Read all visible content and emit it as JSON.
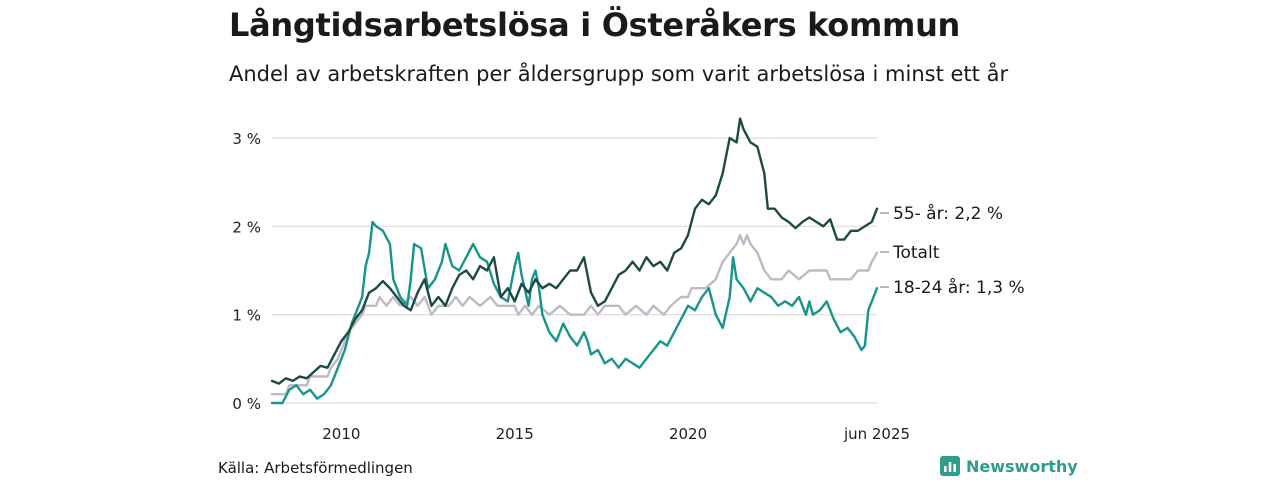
{
  "header": {
    "title": "Långtidsarbetslösa i Österåkers kommun",
    "subtitle": "Andel av arbetskraften per åldersgrupp som varit arbetslösa i minst ett år"
  },
  "footer": {
    "source": "Källa: Arbetsförmedlingen",
    "brand": "Newsworthy"
  },
  "chart_data": {
    "type": "line",
    "title": "Långtidsarbetslösa i Österåkers kommun",
    "subtitle": "Andel av arbetskraften per åldersgrupp som varit arbetslösa i minst ett år",
    "xlabel": "",
    "ylabel": "",
    "x_ticks": [
      "2010",
      "2015",
      "2020",
      "jun 2025"
    ],
    "y_ticks": [
      "0 %",
      "1 %",
      "2 %",
      "3 %"
    ],
    "ylim": [
      0,
      3.3
    ],
    "xlim": [
      2008.0,
      2025.45
    ],
    "grid": "horizontal",
    "legend": "direct labels at line ends",
    "colors": {
      "age55": "#1f4a44",
      "total": "#bdbac7",
      "age18_24": "#17958a"
    },
    "series": [
      {
        "name": "55- år",
        "end_label": "55- år: 2,2 %",
        "color": "#1f4a44",
        "points": [
          [
            2008.0,
            0.25
          ],
          [
            2008.2,
            0.22
          ],
          [
            2008.4,
            0.28
          ],
          [
            2008.6,
            0.25
          ],
          [
            2008.8,
            0.3
          ],
          [
            2009.0,
            0.28
          ],
          [
            2009.2,
            0.35
          ],
          [
            2009.4,
            0.42
          ],
          [
            2009.6,
            0.4
          ],
          [
            2009.8,
            0.55
          ],
          [
            2010.0,
            0.7
          ],
          [
            2010.2,
            0.8
          ],
          [
            2010.4,
            0.95
          ],
          [
            2010.6,
            1.05
          ],
          [
            2010.8,
            1.25
          ],
          [
            2011.0,
            1.3
          ],
          [
            2011.2,
            1.38
          ],
          [
            2011.4,
            1.3
          ],
          [
            2011.6,
            1.2
          ],
          [
            2011.8,
            1.1
          ],
          [
            2012.0,
            1.05
          ],
          [
            2012.2,
            1.25
          ],
          [
            2012.4,
            1.4
          ],
          [
            2012.6,
            1.1
          ],
          [
            2012.8,
            1.2
          ],
          [
            2013.0,
            1.1
          ],
          [
            2013.2,
            1.3
          ],
          [
            2013.4,
            1.45
          ],
          [
            2013.6,
            1.5
          ],
          [
            2013.8,
            1.4
          ],
          [
            2014.0,
            1.55
          ],
          [
            2014.2,
            1.5
          ],
          [
            2014.4,
            1.65
          ],
          [
            2014.6,
            1.2
          ],
          [
            2014.8,
            1.3
          ],
          [
            2015.0,
            1.15
          ],
          [
            2015.2,
            1.35
          ],
          [
            2015.4,
            1.25
          ],
          [
            2015.6,
            1.4
          ],
          [
            2015.8,
            1.3
          ],
          [
            2016.0,
            1.35
          ],
          [
            2016.2,
            1.3
          ],
          [
            2016.4,
            1.4
          ],
          [
            2016.6,
            1.5
          ],
          [
            2016.8,
            1.5
          ],
          [
            2017.0,
            1.65
          ],
          [
            2017.2,
            1.25
          ],
          [
            2017.4,
            1.1
          ],
          [
            2017.6,
            1.15
          ],
          [
            2017.8,
            1.3
          ],
          [
            2018.0,
            1.45
          ],
          [
            2018.2,
            1.5
          ],
          [
            2018.4,
            1.6
          ],
          [
            2018.6,
            1.5
          ],
          [
            2018.8,
            1.65
          ],
          [
            2019.0,
            1.55
          ],
          [
            2019.2,
            1.6
          ],
          [
            2019.4,
            1.5
          ],
          [
            2019.6,
            1.7
          ],
          [
            2019.8,
            1.75
          ],
          [
            2020.0,
            1.9
          ],
          [
            2020.2,
            2.2
          ],
          [
            2020.4,
            2.3
          ],
          [
            2020.6,
            2.25
          ],
          [
            2020.8,
            2.35
          ],
          [
            2021.0,
            2.6
          ],
          [
            2021.2,
            3.0
          ],
          [
            2021.4,
            2.95
          ],
          [
            2021.5,
            3.22
          ],
          [
            2021.6,
            3.1
          ],
          [
            2021.8,
            2.95
          ],
          [
            2022.0,
            2.9
          ],
          [
            2022.2,
            2.6
          ],
          [
            2022.3,
            2.2
          ],
          [
            2022.5,
            2.2
          ],
          [
            2022.7,
            2.1
          ],
          [
            2022.9,
            2.05
          ],
          [
            2023.1,
            1.98
          ],
          [
            2023.3,
            2.05
          ],
          [
            2023.5,
            2.1
          ],
          [
            2023.7,
            2.05
          ],
          [
            2023.9,
            2.0
          ],
          [
            2024.1,
            2.08
          ],
          [
            2024.3,
            1.85
          ],
          [
            2024.5,
            1.85
          ],
          [
            2024.7,
            1.95
          ],
          [
            2024.9,
            1.95
          ],
          [
            2025.1,
            2.0
          ],
          [
            2025.3,
            2.05
          ],
          [
            2025.45,
            2.2
          ]
        ]
      },
      {
        "name": "Totalt",
        "end_label": "Totalt",
        "color": "#bdbac7",
        "points": [
          [
            2008.0,
            0.1
          ],
          [
            2008.4,
            0.1
          ],
          [
            2008.5,
            0.2
          ],
          [
            2009.0,
            0.2
          ],
          [
            2009.1,
            0.3
          ],
          [
            2009.6,
            0.3
          ],
          [
            2009.7,
            0.4
          ],
          [
            2009.9,
            0.5
          ],
          [
            2010.0,
            0.6
          ],
          [
            2010.2,
            0.8
          ],
          [
            2010.4,
            0.9
          ],
          [
            2010.6,
            1.0
          ],
          [
            2010.7,
            1.1
          ],
          [
            2011.0,
            1.1
          ],
          [
            2011.1,
            1.2
          ],
          [
            2011.3,
            1.1
          ],
          [
            2011.5,
            1.2
          ],
          [
            2011.7,
            1.1
          ],
          [
            2012.0,
            1.2
          ],
          [
            2012.2,
            1.1
          ],
          [
            2012.4,
            1.2
          ],
          [
            2012.6,
            1.0
          ],
          [
            2012.8,
            1.1
          ],
          [
            2013.1,
            1.1
          ],
          [
            2013.3,
            1.2
          ],
          [
            2013.5,
            1.1
          ],
          [
            2013.7,
            1.2
          ],
          [
            2014.0,
            1.1
          ],
          [
            2014.3,
            1.2
          ],
          [
            2014.5,
            1.1
          ],
          [
            2015.0,
            1.1
          ],
          [
            2015.1,
            1.0
          ],
          [
            2015.3,
            1.1
          ],
          [
            2015.5,
            1.0
          ],
          [
            2015.7,
            1.1
          ],
          [
            2016.0,
            1.0
          ],
          [
            2016.3,
            1.1
          ],
          [
            2016.6,
            1.0
          ],
          [
            2017.0,
            1.0
          ],
          [
            2017.2,
            1.1
          ],
          [
            2017.4,
            1.0
          ],
          [
            2017.6,
            1.1
          ],
          [
            2018.0,
            1.1
          ],
          [
            2018.2,
            1.0
          ],
          [
            2018.5,
            1.1
          ],
          [
            2018.8,
            1.0
          ],
          [
            2019.0,
            1.1
          ],
          [
            2019.3,
            1.0
          ],
          [
            2019.5,
            1.1
          ],
          [
            2019.8,
            1.2
          ],
          [
            2020.0,
            1.2
          ],
          [
            2020.1,
            1.3
          ],
          [
            2020.5,
            1.3
          ],
          [
            2020.8,
            1.4
          ],
          [
            2021.0,
            1.6
          ],
          [
            2021.2,
            1.7
          ],
          [
            2021.4,
            1.8
          ],
          [
            2021.5,
            1.9
          ],
          [
            2021.6,
            1.8
          ],
          [
            2021.7,
            1.9
          ],
          [
            2021.8,
            1.8
          ],
          [
            2022.0,
            1.7
          ],
          [
            2022.2,
            1.5
          ],
          [
            2022.4,
            1.4
          ],
          [
            2022.7,
            1.4
          ],
          [
            2022.9,
            1.5
          ],
          [
            2023.2,
            1.4
          ],
          [
            2023.5,
            1.5
          ],
          [
            2023.8,
            1.5
          ],
          [
            2024.0,
            1.5
          ],
          [
            2024.1,
            1.4
          ],
          [
            2024.7,
            1.4
          ],
          [
            2024.9,
            1.5
          ],
          [
            2025.2,
            1.5
          ],
          [
            2025.3,
            1.6
          ],
          [
            2025.45,
            1.7
          ]
        ]
      },
      {
        "name": "18-24 år",
        "end_label": "18-24 år: 1,3 %",
        "color": "#17958a",
        "points": [
          [
            2008.0,
            0.0
          ],
          [
            2008.3,
            0.0
          ],
          [
            2008.5,
            0.15
          ],
          [
            2008.7,
            0.2
          ],
          [
            2008.9,
            0.1
          ],
          [
            2009.1,
            0.15
          ],
          [
            2009.3,
            0.05
          ],
          [
            2009.5,
            0.1
          ],
          [
            2009.7,
            0.2
          ],
          [
            2009.9,
            0.4
          ],
          [
            2010.1,
            0.6
          ],
          [
            2010.3,
            0.9
          ],
          [
            2010.5,
            1.1
          ],
          [
            2010.6,
            1.2
          ],
          [
            2010.7,
            1.55
          ],
          [
            2010.8,
            1.7
          ],
          [
            2010.9,
            2.05
          ],
          [
            2011.0,
            2.0
          ],
          [
            2011.2,
            1.95
          ],
          [
            2011.4,
            1.8
          ],
          [
            2011.5,
            1.4
          ],
          [
            2011.7,
            1.2
          ],
          [
            2011.9,
            1.1
          ],
          [
            2012.0,
            1.4
          ],
          [
            2012.1,
            1.8
          ],
          [
            2012.3,
            1.75
          ],
          [
            2012.5,
            1.3
          ],
          [
            2012.7,
            1.4
          ],
          [
            2012.9,
            1.6
          ],
          [
            2013.0,
            1.8
          ],
          [
            2013.2,
            1.55
          ],
          [
            2013.4,
            1.5
          ],
          [
            2013.6,
            1.65
          ],
          [
            2013.8,
            1.8
          ],
          [
            2014.0,
            1.65
          ],
          [
            2014.2,
            1.6
          ],
          [
            2014.4,
            1.35
          ],
          [
            2014.6,
            1.2
          ],
          [
            2014.8,
            1.15
          ],
          [
            2015.0,
            1.55
          ],
          [
            2015.1,
            1.7
          ],
          [
            2015.2,
            1.45
          ],
          [
            2015.4,
            1.1
          ],
          [
            2015.5,
            1.4
          ],
          [
            2015.6,
            1.5
          ],
          [
            2015.7,
            1.3
          ],
          [
            2015.8,
            1.0
          ],
          [
            2016.0,
            0.8
          ],
          [
            2016.2,
            0.7
          ],
          [
            2016.4,
            0.9
          ],
          [
            2016.6,
            0.75
          ],
          [
            2016.8,
            0.65
          ],
          [
            2017.0,
            0.8
          ],
          [
            2017.1,
            0.7
          ],
          [
            2017.2,
            0.55
          ],
          [
            2017.4,
            0.6
          ],
          [
            2017.6,
            0.45
          ],
          [
            2017.8,
            0.5
          ],
          [
            2018.0,
            0.4
          ],
          [
            2018.2,
            0.5
          ],
          [
            2018.4,
            0.45
          ],
          [
            2018.6,
            0.4
          ],
          [
            2018.8,
            0.5
          ],
          [
            2019.0,
            0.6
          ],
          [
            2019.2,
            0.7
          ],
          [
            2019.4,
            0.65
          ],
          [
            2019.6,
            0.8
          ],
          [
            2019.8,
            0.95
          ],
          [
            2020.0,
            1.1
          ],
          [
            2020.2,
            1.05
          ],
          [
            2020.4,
            1.2
          ],
          [
            2020.6,
            1.3
          ],
          [
            2020.8,
            1.0
          ],
          [
            2021.0,
            0.85
          ],
          [
            2021.2,
            1.2
          ],
          [
            2021.3,
            1.65
          ],
          [
            2021.4,
            1.4
          ],
          [
            2021.6,
            1.3
          ],
          [
            2021.8,
            1.15
          ],
          [
            2022.0,
            1.3
          ],
          [
            2022.2,
            1.25
          ],
          [
            2022.4,
            1.2
          ],
          [
            2022.6,
            1.1
          ],
          [
            2022.8,
            1.15
          ],
          [
            2023.0,
            1.1
          ],
          [
            2023.2,
            1.2
          ],
          [
            2023.4,
            1.0
          ],
          [
            2023.5,
            1.15
          ],
          [
            2023.6,
            1.0
          ],
          [
            2023.8,
            1.05
          ],
          [
            2024.0,
            1.15
          ],
          [
            2024.2,
            0.95
          ],
          [
            2024.4,
            0.8
          ],
          [
            2024.6,
            0.85
          ],
          [
            2024.8,
            0.75
          ],
          [
            2025.0,
            0.6
          ],
          [
            2025.1,
            0.65
          ],
          [
            2025.2,
            1.05
          ],
          [
            2025.35,
            1.2
          ],
          [
            2025.45,
            1.3
          ]
        ]
      }
    ]
  }
}
